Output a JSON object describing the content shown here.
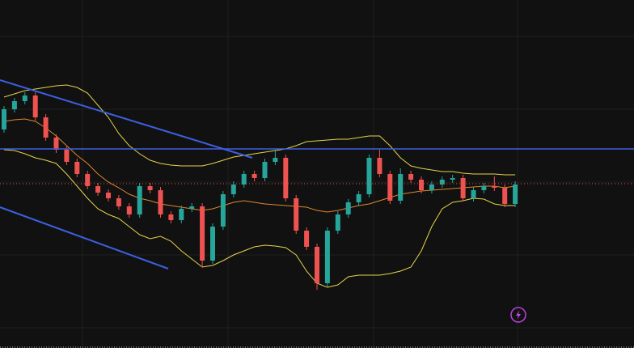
{
  "chart_data": {
    "type": "candlestick",
    "up_color": "#26a69a",
    "down_color": "#ef5350",
    "ylim": [
      0,
      430
    ],
    "open": [
      270,
      295,
      305,
      312,
      285,
      260,
      245,
      230,
      215,
      200,
      192,
      185,
      175,
      165,
      200,
      195,
      165,
      158,
      172,
      175,
      108,
      150,
      190,
      202,
      215,
      210,
      230,
      235,
      185,
      145,
      125,
      80,
      145,
      165,
      180,
      190,
      235,
      215,
      182,
      215,
      208,
      195,
      202,
      208,
      210,
      185,
      195,
      200,
      198,
      178
    ],
    "close": [
      295,
      305,
      312,
      285,
      260,
      245,
      230,
      215,
      200,
      192,
      185,
      175,
      165,
      200,
      195,
      165,
      158,
      172,
      175,
      108,
      150,
      190,
      202,
      215,
      210,
      230,
      235,
      185,
      145,
      125,
      80,
      145,
      165,
      180,
      190,
      235,
      215,
      182,
      215,
      208,
      195,
      202,
      208,
      210,
      185,
      195,
      200,
      198,
      178,
      202
    ],
    "high": [
      299,
      309,
      316,
      316,
      289,
      264,
      249,
      234,
      219,
      204,
      196,
      189,
      179,
      204,
      204,
      199,
      169,
      176,
      179,
      179,
      154,
      194,
      206,
      219,
      219,
      234,
      245,
      239,
      189,
      149,
      129,
      149,
      169,
      184,
      194,
      239,
      245,
      219,
      222,
      219,
      212,
      206,
      212,
      214,
      214,
      199,
      204,
      212,
      202,
      206
    ],
    "low": [
      266,
      291,
      301,
      281,
      256,
      241,
      226,
      211,
      196,
      188,
      181,
      171,
      161,
      161,
      191,
      161,
      154,
      154,
      168,
      100,
      104,
      146,
      186,
      198,
      206,
      206,
      226,
      181,
      141,
      121,
      72,
      76,
      141,
      161,
      176,
      186,
      211,
      178,
      178,
      204,
      191,
      191,
      198,
      204,
      181,
      181,
      191,
      194,
      174,
      174
    ],
    "lines": [
      {
        "color": "#e6d34a",
        "values": [
          310,
          314,
          318,
          320,
          322,
          324,
          325,
          322,
          315,
          300,
          285,
          265,
          250,
          240,
          232,
          228,
          226,
          225,
          225,
          225,
          228,
          232,
          236,
          238,
          240,
          242,
          244,
          246,
          250,
          255,
          256,
          257,
          258,
          258,
          260,
          262,
          262,
          250,
          235,
          225,
          222,
          220,
          218,
          218,
          216,
          215,
          215,
          215,
          214,
          214
        ]
      },
      {
        "color": "#e0862e",
        "values": [
          280,
          282,
          283,
          280,
          272,
          262,
          250,
          238,
          228,
          215,
          205,
          198,
          190,
          185,
          182,
          178,
          176,
          174,
          172,
          170,
          172,
          176,
          180,
          182,
          180,
          178,
          177,
          176,
          175,
          174,
          170,
          168,
          170,
          173,
          176,
          178,
          182,
          186,
          190,
          192,
          194,
          195,
          196,
          197,
          198,
          199,
          200,
          200,
          198,
          200
        ]
      },
      {
        "color": "#e6d34a",
        "values": [
          245,
          244,
          240,
          235,
          232,
          228,
          215,
          200,
          185,
          172,
          165,
          160,
          150,
          140,
          135,
          138,
          132,
          120,
          110,
          100,
          102,
          108,
          115,
          120,
          125,
          127,
          126,
          124,
          115,
          95,
          80,
          75,
          78,
          88,
          90,
          90,
          90,
          92,
          95,
          100,
          120,
          150,
          172,
          180,
          182,
          185,
          184,
          178,
          176,
          176
        ]
      }
    ]
  }
}
